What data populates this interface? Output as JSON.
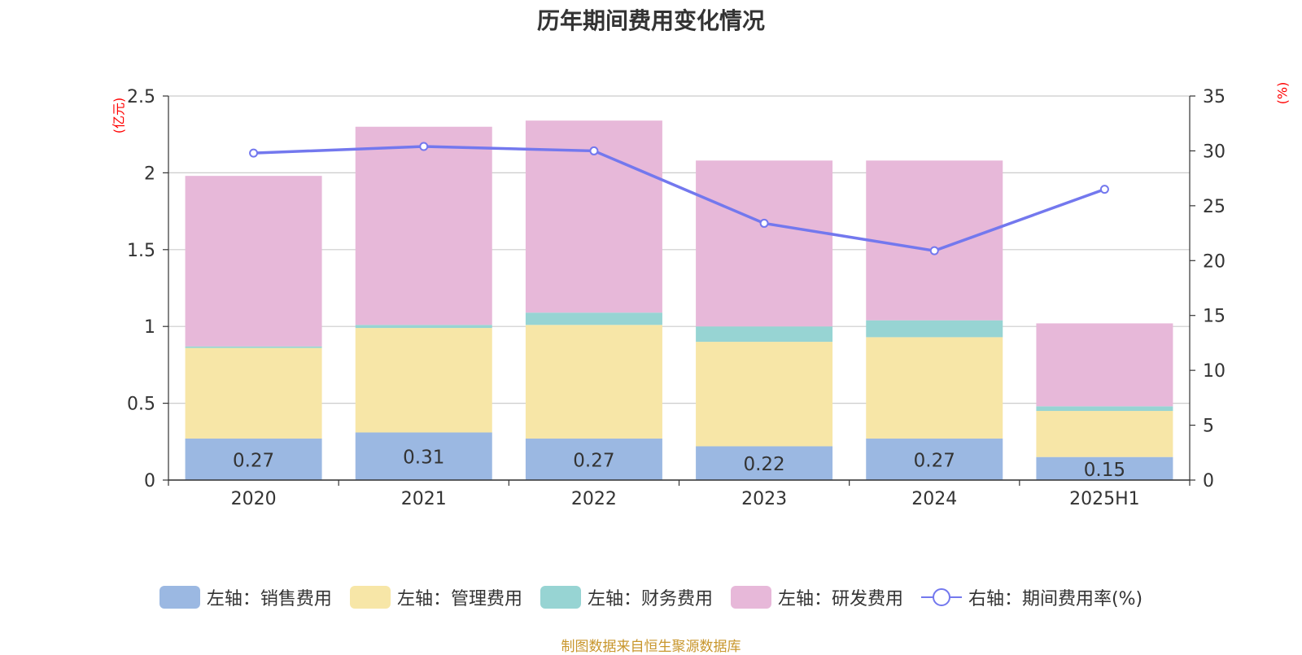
{
  "chart_data": {
    "type": "bar",
    "title": "历年期间费用变化情况",
    "categories": [
      "2020",
      "2021",
      "2022",
      "2023",
      "2024",
      "2025H1"
    ],
    "y_left": {
      "unit_label": "(亿元)",
      "ylim": [
        0,
        2.5
      ],
      "ticks": [
        "0",
        "0.5",
        "1",
        "1.5",
        "2",
        "2.5"
      ]
    },
    "y_right": {
      "unit_label": "(%)",
      "ylim": [
        0,
        35
      ],
      "ticks": [
        "0",
        "5",
        "10",
        "15",
        "20",
        "25",
        "30",
        "35"
      ]
    },
    "series": [
      {
        "name": "左轴：销售费用",
        "axis": "left",
        "type": "bar",
        "stack": true,
        "color": "#9bb8e2",
        "values": [
          0.27,
          0.31,
          0.27,
          0.22,
          0.27,
          0.15
        ],
        "data_labels": [
          "0.27",
          "0.31",
          "0.27",
          "0.22",
          "0.27",
          "0.15"
        ]
      },
      {
        "name": "左轴：管理费用",
        "axis": "left",
        "type": "bar",
        "stack": true,
        "color": "#f7e6a7",
        "values": [
          0.59,
          0.68,
          0.74,
          0.68,
          0.66,
          0.3
        ]
      },
      {
        "name": "左轴：财务费用",
        "axis": "left",
        "type": "bar",
        "stack": true,
        "color": "#97d4d3",
        "values": [
          0.01,
          0.02,
          0.08,
          0.1,
          0.11,
          0.03
        ]
      },
      {
        "name": "左轴：研发费用",
        "axis": "left",
        "type": "bar",
        "stack": true,
        "color": "#e7b8d9",
        "values": [
          1.11,
          1.29,
          1.25,
          1.08,
          1.04,
          0.54
        ]
      },
      {
        "name": "右轴：期间费用率(%)",
        "axis": "right",
        "type": "line",
        "color": "#7378ee",
        "values": [
          29.8,
          30.4,
          30.0,
          23.4,
          20.9,
          26.5
        ]
      }
    ],
    "grid": true,
    "legend_position": "bottom"
  },
  "source_note": "制图数据来自恒生聚源数据库"
}
